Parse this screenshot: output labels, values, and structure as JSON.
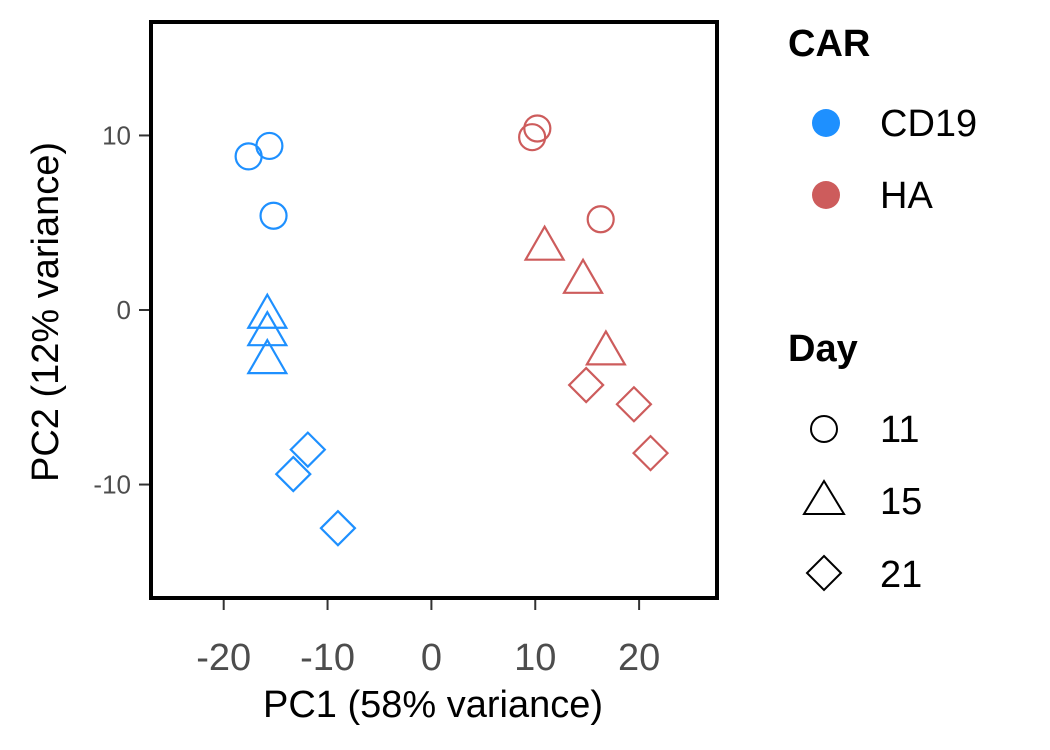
{
  "chart_data": {
    "type": "scatter",
    "xlabel": "PC1 (58% variance)",
    "ylabel": "PC2 (12% variance)",
    "xlim": [
      -27,
      27.5
    ],
    "ylim": [
      -16.5,
      16.5
    ],
    "x_ticks": [
      -20,
      -10,
      0,
      10,
      20
    ],
    "x_tick_labels": [
      "-20",
      "-10",
      "0",
      "10",
      "20"
    ],
    "y_ticks": [
      -10,
      0,
      10
    ],
    "y_tick_labels": [
      "-10",
      "0",
      "10"
    ],
    "grid": false,
    "legend_position": "right",
    "legends": {
      "color": {
        "title": "CAR",
        "items": [
          {
            "label": "CD19",
            "color": "#1e90ff"
          },
          {
            "label": "HA",
            "color": "#cd5c5c"
          }
        ]
      },
      "shape": {
        "title": "Day",
        "items": [
          {
            "label": "11",
            "shape": "circle"
          },
          {
            "label": "15",
            "shape": "triangle"
          },
          {
            "label": "21",
            "shape": "diamond"
          }
        ]
      }
    },
    "points": [
      {
        "x": -17.6,
        "y": 8.8,
        "car": "CD19",
        "day": "11"
      },
      {
        "x": -15.6,
        "y": 9.4,
        "car": "CD19",
        "day": "11"
      },
      {
        "x": -15.2,
        "y": 5.4,
        "car": "CD19",
        "day": "11"
      },
      {
        "x": -15.8,
        "y": -0.1,
        "car": "CD19",
        "day": "15"
      },
      {
        "x": -15.8,
        "y": -1.1,
        "car": "CD19",
        "day": "15"
      },
      {
        "x": -15.8,
        "y": -2.7,
        "car": "CD19",
        "day": "15"
      },
      {
        "x": -11.9,
        "y": -8.0,
        "car": "CD19",
        "day": "21"
      },
      {
        "x": -13.3,
        "y": -9.4,
        "car": "CD19",
        "day": "21"
      },
      {
        "x": -9.0,
        "y": -12.5,
        "car": "CD19",
        "day": "21"
      },
      {
        "x": 9.7,
        "y": 9.9,
        "car": "HA",
        "day": "11"
      },
      {
        "x": 10.2,
        "y": 10.4,
        "car": "HA",
        "day": "11"
      },
      {
        "x": 16.3,
        "y": 5.2,
        "car": "HA",
        "day": "11"
      },
      {
        "x": 10.9,
        "y": 3.8,
        "car": "HA",
        "day": "15"
      },
      {
        "x": 14.6,
        "y": 1.9,
        "car": "HA",
        "day": "15"
      },
      {
        "x": 16.8,
        "y": -2.2,
        "car": "HA",
        "day": "15"
      },
      {
        "x": 14.9,
        "y": -4.3,
        "car": "HA",
        "day": "21"
      },
      {
        "x": 19.5,
        "y": -5.4,
        "car": "HA",
        "day": "21"
      },
      {
        "x": 21.1,
        "y": -8.2,
        "car": "HA",
        "day": "21"
      }
    ]
  }
}
